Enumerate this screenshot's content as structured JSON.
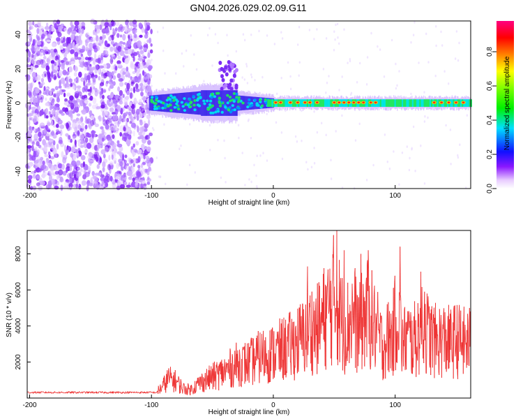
{
  "title": "GN04.2026.029.02.09.G11",
  "chart_data": [
    {
      "type": "heatmap",
      "xlabel": "Height of straight line (km)",
      "ylabel": "Frequency (Hz)",
      "xlim": [
        -202,
        162
      ],
      "ylim": [
        -50,
        48
      ],
      "xticks": [
        -200,
        -100,
        0,
        100
      ],
      "yticks": [
        -40,
        -20,
        0,
        20,
        40
      ],
      "colorbar": {
        "label": "Normalized spectral amplitude",
        "range": [
          0,
          0.98
        ],
        "ticks": [
          0,
          0.2,
          0.4,
          0.6,
          0.8
        ],
        "colormap": "rainbow (white-violet-blue-cyan-green-yellow-orange-red-magenta)"
      },
      "features": [
        {
          "x_range": [
            -202,
            -100
          ],
          "description": "broadband noise spread across all frequencies, amplitude 0.1-0.2"
        },
        {
          "x_range": [
            -100,
            -30
          ],
          "description": "signal emerging near 0 Hz with spread of about +/-10 Hz, amplitude 0.2-0.45"
        },
        {
          "x_range": [
            -40,
            -30
          ],
          "description": "upward burst reaching about 25 Hz"
        },
        {
          "x_range": [
            0,
            162
          ],
          "description": "narrow line at about 0 Hz, amplitude 0.4-0.9, strongest near 0-40, 45-70 and 130-160 km"
        }
      ]
    },
    {
      "type": "line",
      "xlabel": "Height of straight line (km)",
      "ylabel": "SNR (10 * v/v)",
      "xlim": [
        -202,
        162
      ],
      "ylim": [
        0,
        9300
      ],
      "xticks": [
        -200,
        -100,
        0,
        100
      ],
      "yticks": [
        2000,
        4000,
        6000,
        8000
      ],
      "color": "#ee3333",
      "x": [
        -202,
        -180,
        -160,
        -140,
        -120,
        -100,
        -92,
        -86,
        -80,
        -74,
        -68,
        -60,
        -50,
        -40,
        -30,
        -20,
        -10,
        0,
        8,
        16,
        24,
        30,
        36,
        42,
        46,
        50,
        54,
        58,
        62,
        66,
        70,
        74,
        78,
        82,
        86,
        90,
        94,
        98,
        102,
        106,
        110,
        114,
        118,
        122,
        126,
        130,
        134,
        138,
        142,
        146,
        150,
        154,
        158,
        162
      ],
      "y": [
        300,
        280,
        280,
        270,
        280,
        300,
        700,
        1400,
        1200,
        700,
        600,
        1100,
        1500,
        1900,
        2400,
        2500,
        3000,
        3200,
        3500,
        3800,
        4300,
        5000,
        4900,
        5800,
        6400,
        7200,
        6300,
        5000,
        5300,
        6100,
        4700,
        5800,
        6100,
        5300,
        4500,
        3700,
        4300,
        4400,
        6500,
        3800,
        4400,
        4000,
        4300,
        5800,
        4700,
        4300,
        4000,
        4200,
        4100,
        3900,
        4200,
        4000,
        3900,
        4000
      ],
      "peaks": [
        {
          "x": 28,
          "y": 7300
        },
        {
          "x": 52,
          "y": 9300
        },
        {
          "x": 58,
          "y": 8200
        },
        {
          "x": 72,
          "y": 8000
        },
        {
          "x": 78,
          "y": 8200
        },
        {
          "x": 104,
          "y": 8400
        },
        {
          "x": 124,
          "y": 5900
        }
      ]
    }
  ]
}
